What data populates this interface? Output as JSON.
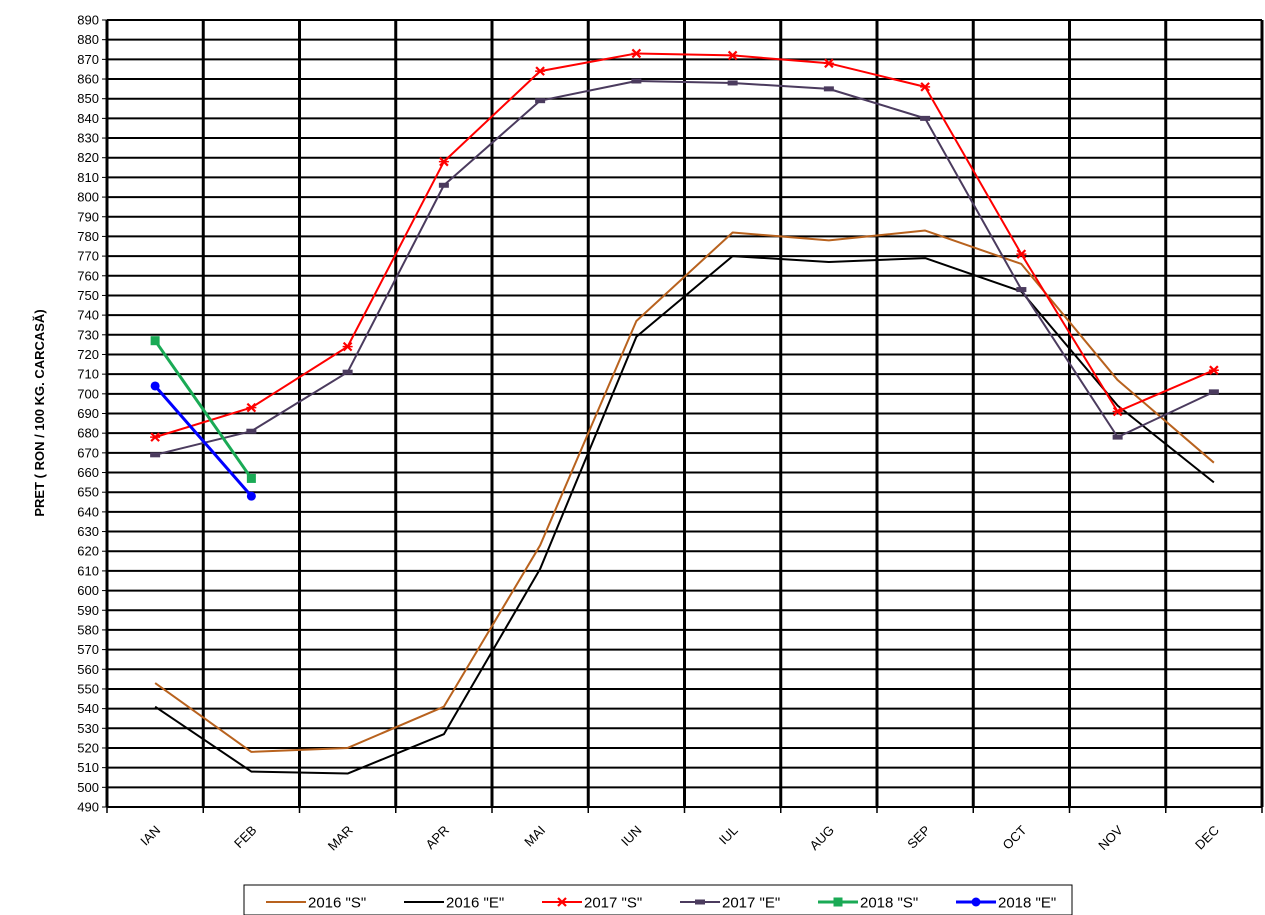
{
  "chart_data": {
    "type": "line",
    "title": "",
    "xlabel": "",
    "ylabel": "PRET ( RON / 100 KG. CARCASĂ)",
    "ylim": [
      490,
      890
    ],
    "ytick_step": 10,
    "grid": true,
    "legend_position": "bottom",
    "categories": [
      "IAN",
      "FEB",
      "MAR",
      "APR",
      "MAI",
      "IUN",
      "IUL",
      "AUG",
      "SEP",
      "OCT",
      "NOV",
      "DEC"
    ],
    "series": [
      {
        "name": "2016 \"S\"",
        "color": "#b8621e",
        "marker": "none",
        "values": [
          553,
          518,
          520,
          541,
          623,
          737,
          782,
          778,
          783,
          766,
          707,
          665
        ]
      },
      {
        "name": "2016 \"E\"",
        "color": "#000000",
        "marker": "none",
        "values": [
          541,
          508,
          507,
          527,
          611,
          729,
          770,
          767,
          769,
          752,
          694,
          655
        ]
      },
      {
        "name": "2017 \"S\"",
        "color": "#ff0000",
        "marker": "x",
        "values": [
          678,
          693,
          724,
          818,
          864,
          873,
          872,
          868,
          856,
          771,
          691,
          712
        ]
      },
      {
        "name": "2017 \"E\"",
        "color": "#4b3b5e",
        "marker": "dash",
        "values": [
          669,
          681,
          711,
          806,
          849,
          859,
          858,
          855,
          840,
          753,
          678,
          701
        ]
      },
      {
        "name": "2018 \"S\"",
        "color": "#1aaa55",
        "marker": "square",
        "values": [
          727,
          657,
          null,
          null,
          null,
          null,
          null,
          null,
          null,
          null,
          null,
          null
        ]
      },
      {
        "name": "2018 \"E\"",
        "color": "#0000ff",
        "marker": "circle",
        "values": [
          704,
          648,
          null,
          null,
          null,
          null,
          null,
          null,
          null,
          null,
          null,
          null
        ]
      }
    ]
  }
}
